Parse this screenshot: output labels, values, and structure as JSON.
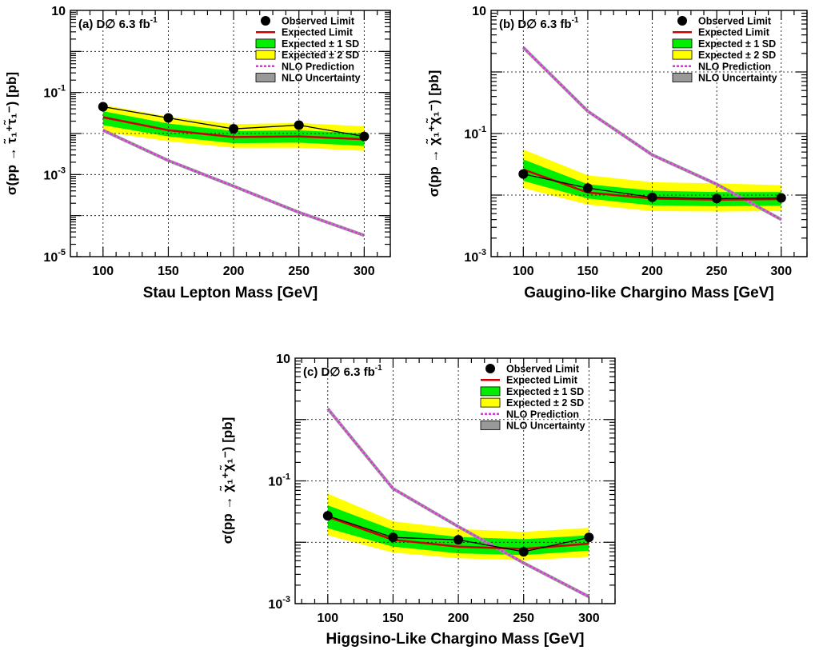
{
  "legend": {
    "observed": "Observed Limit",
    "expected": "Expected Limit",
    "band1": "Expected ± 1 SD",
    "band2": "Expected ± 2 SD",
    "nlo": "NLO Prediction",
    "nlo_unc": "NLO Uncertainty"
  },
  "colors": {
    "observed": "#000000",
    "expected": "#cc0000",
    "band1": "#00ee00",
    "band2": "#ffff00",
    "nlo": "#dd33dd",
    "nlo_unc": "#999999"
  },
  "chart_data": [
    {
      "id": "a",
      "type": "line",
      "panel_label_main": "(a) D∅ 6.3 fb",
      "panel_label_sup": "-1",
      "xlabel": "Stau Lepton Mass [GeV]",
      "ylabel_main": "σ(pp → ",
      "ylabel_particles": "τ̃₁⁺τ̃₁⁻",
      "ylabel_end": ") [pb]",
      "xlim": [
        75,
        320
      ],
      "ylim": [
        1e-05,
        10
      ],
      "yscale": "log",
      "xticks": [
        100,
        150,
        200,
        250,
        300
      ],
      "xtick_labels": [
        "100",
        "150",
        "200",
        "250",
        "300"
      ],
      "yticks": [
        10,
        0.1,
        0.001,
        1e-05
      ],
      "ytick_base": [
        "10",
        "10",
        "10",
        "10"
      ],
      "ytick_exp": [
        "",
        "-1",
        "-3",
        "-5"
      ],
      "grid": true,
      "legend_position": "top-right",
      "x": [
        100,
        150,
        200,
        250,
        300
      ],
      "observed": [
        0.045,
        0.024,
        0.013,
        0.016,
        0.0085
      ],
      "expected": [
        0.025,
        0.012,
        0.0082,
        0.0085,
        0.0072
      ],
      "band1_lo": [
        0.016,
        0.0085,
        0.0058,
        0.006,
        0.005
      ],
      "band1_hi": [
        0.035,
        0.0175,
        0.0115,
        0.012,
        0.01
      ],
      "band2_lo": [
        0.011,
        0.0065,
        0.0045,
        0.0045,
        0.0038
      ],
      "band2_hi": [
        0.05,
        0.026,
        0.017,
        0.018,
        0.015
      ],
      "nlo": [
        0.012,
        0.0022,
        0.00052,
        0.00012,
        3.3e-05
      ]
    },
    {
      "id": "b",
      "type": "line",
      "panel_label_main": "(b) D∅ 6.3 fb",
      "panel_label_sup": "-1",
      "xlabel": "Gaugino-like Chargino Mass [GeV]",
      "ylabel_main": "σ(pp → ",
      "ylabel_particles": "χ̃₁⁺χ̃₁⁻",
      "ylabel_end": ") [pb]",
      "xlim": [
        75,
        320
      ],
      "ylim": [
        0.001,
        10
      ],
      "yscale": "log",
      "xticks": [
        100,
        150,
        200,
        250,
        300
      ],
      "xtick_labels": [
        "100",
        "150",
        "200",
        "250",
        "300"
      ],
      "yticks": [
        10,
        0.1,
        0.001
      ],
      "ytick_base": [
        "10",
        "10",
        "10"
      ],
      "ytick_exp": [
        "",
        "-1",
        "-3"
      ],
      "grid": true,
      "legend_position": "top-right",
      "x": [
        100,
        150,
        200,
        250,
        300
      ],
      "observed": [
        0.022,
        0.013,
        0.0092,
        0.0088,
        0.009
      ],
      "expected": [
        0.026,
        0.011,
        0.0088,
        0.0084,
        0.0086
      ],
      "band1_lo": [
        0.017,
        0.0088,
        0.0068,
        0.0066,
        0.0067
      ],
      "band1_hi": [
        0.038,
        0.015,
        0.0118,
        0.0112,
        0.0112
      ],
      "band2_lo": [
        0.013,
        0.007,
        0.0055,
        0.0054,
        0.0055
      ],
      "band2_hi": [
        0.055,
        0.021,
        0.0162,
        0.0155,
        0.0145
      ],
      "nlo": [
        2.5,
        0.23,
        0.045,
        0.015,
        0.004
      ]
    },
    {
      "id": "c",
      "type": "line",
      "panel_label_main": "(c) D∅ 6.3 fb",
      "panel_label_sup": "-1",
      "xlabel": "Higgsino-Like Chargino Mass [GeV]",
      "ylabel_main": "σ(pp → ",
      "ylabel_particles": "χ̃₁⁺χ̃₁⁻",
      "ylabel_end": ") [pb]",
      "xlim": [
        75,
        320
      ],
      "ylim": [
        0.001,
        10
      ],
      "yscale": "log",
      "xticks": [
        100,
        150,
        200,
        250,
        300
      ],
      "xtick_labels": [
        "100",
        "150",
        "200",
        "250",
        "300"
      ],
      "yticks": [
        10,
        0.1,
        0.001
      ],
      "ytick_base": [
        "10",
        "10",
        "10"
      ],
      "ytick_exp": [
        "",
        "-1",
        "-3"
      ],
      "grid": true,
      "legend_position": "top-right",
      "x": [
        100,
        150,
        200,
        250,
        300
      ],
      "observed": [
        0.027,
        0.012,
        0.011,
        0.007,
        0.012
      ],
      "expected": [
        0.026,
        0.011,
        0.0085,
        0.0078,
        0.0095
      ],
      "band1_lo": [
        0.017,
        0.0085,
        0.0066,
        0.0062,
        0.0073
      ],
      "band1_hi": [
        0.04,
        0.016,
        0.0122,
        0.0112,
        0.013
      ],
      "band2_lo": [
        0.013,
        0.0068,
        0.0055,
        0.0051,
        0.0058
      ],
      "band2_hi": [
        0.062,
        0.022,
        0.0165,
        0.0148,
        0.0172
      ],
      "nlo": [
        1.5,
        0.075,
        0.018,
        0.0046,
        0.0013
      ]
    }
  ]
}
